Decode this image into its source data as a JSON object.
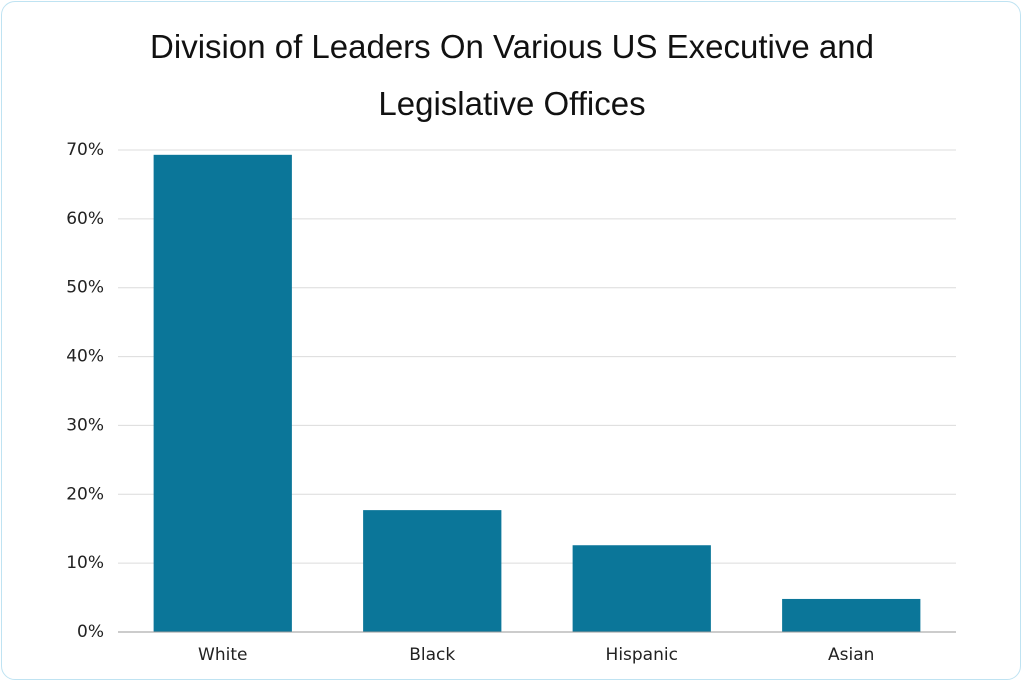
{
  "chart_data": {
    "type": "bar",
    "title": "Division of Leaders On Various US Executive and Legislative Offices",
    "categories": [
      "White",
      "Black",
      "Hispanic",
      "Asian"
    ],
    "values": [
      69.3,
      17.7,
      12.6,
      4.8
    ],
    "color": "#0b7699",
    "ylim": [
      0,
      70
    ],
    "yticks": [
      {
        "value": 0,
        "label": "0%"
      },
      {
        "value": 10,
        "label": "10%"
      },
      {
        "value": 20,
        "label": "20%"
      },
      {
        "value": 30,
        "label": "30%"
      },
      {
        "value": 40,
        "label": "40%"
      },
      {
        "value": 50,
        "label": "50%"
      },
      {
        "value": 60,
        "label": "60%"
      },
      {
        "value": 70,
        "label": "70%"
      }
    ],
    "grid": true
  }
}
